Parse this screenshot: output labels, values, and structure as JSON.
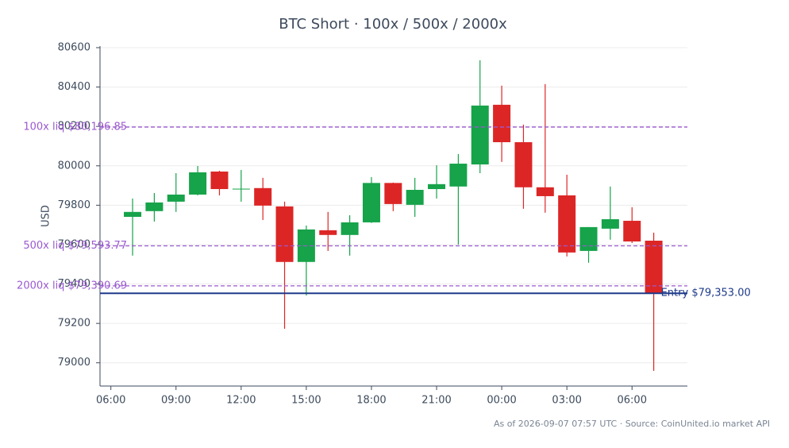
{
  "chart_data": {
    "type": "candlestick",
    "title": "BTC Short · 100x / 500x / 2000x",
    "y_label": "USD",
    "footnote": "As of 2026-09-07 07:57 UTC · Source: CoinUnited.io market API",
    "x": [
      7,
      8,
      9,
      10,
      11,
      12,
      13,
      14,
      15,
      16,
      17,
      18,
      19,
      20,
      21,
      22,
      23,
      24,
      25,
      26,
      27,
      28,
      29,
      30,
      31
    ],
    "open": [
      79741,
      79770,
      79818,
      79854,
      79971,
      79880,
      79887,
      79794,
      79512,
      79673,
      79649,
      79713,
      79913,
      79802,
      79882,
      79895,
      80007,
      80310,
      80120,
      79891,
      79850,
      79568,
      79681,
      79721,
      79620
    ],
    "high": [
      79834,
      79862,
      79963,
      79999,
      79975,
      79979,
      79939,
      79818,
      79697,
      79766,
      79749,
      79943,
      79915,
      79939,
      80003,
      80060,
      80536,
      80407,
      80209,
      80415,
      79955,
      79689,
      79895,
      79790,
      79661
    ],
    "low": [
      79544,
      79717,
      79766,
      79850,
      79850,
      79818,
      79725,
      79173,
      79342,
      79568,
      79544,
      79710,
      79770,
      79741,
      79834,
      79600,
      79963,
      80020,
      79782,
      79762,
      79540,
      79508,
      79625,
      79608,
      78959
    ],
    "close": [
      79766,
      79814,
      79854,
      79967,
      79882,
      79884,
      79798,
      79512,
      79677,
      79649,
      79713,
      79913,
      79806,
      79878,
      79907,
      80011,
      80306,
      80120,
      79891,
      79846,
      79560,
      79689,
      79729,
      79616,
      79353
    ],
    "up_color": "#16a34a",
    "down_color": "#dc2626",
    "xlim": [
      5.5,
      32.55
    ],
    "xticks": [
      {
        "value": 6,
        "label": "06:00"
      },
      {
        "value": 9,
        "label": "09:00"
      },
      {
        "value": 12,
        "label": "12:00"
      },
      {
        "value": 15,
        "label": "15:00"
      },
      {
        "value": 18,
        "label": "18:00"
      },
      {
        "value": 21,
        "label": "21:00"
      },
      {
        "value": 24,
        "label": "00:00"
      },
      {
        "value": 27,
        "label": "03:00"
      },
      {
        "value": 30,
        "label": "06:00"
      }
    ],
    "ylim": [
      78882,
      80608
    ],
    "yticks": [
      79000,
      79200,
      79400,
      79600,
      79800,
      80000,
      80200,
      80400,
      80600
    ],
    "grid": true,
    "levels": [
      {
        "label": "100x liq $80,196.85",
        "value": 80196.85,
        "color": "#9b59d0",
        "style": "dashed"
      },
      {
        "label": "500x liq $79,593.77",
        "value": 79593.77,
        "color": "#9b59d0",
        "style": "dashed"
      },
      {
        "label": "2000x liq $79,390.69",
        "value": 79390.69,
        "color": "#9b59d0",
        "style": "dashed"
      },
      {
        "label": "Entry $79,353.00",
        "value": 79353,
        "color": "#1e3a8a",
        "style": "solid"
      }
    ]
  }
}
